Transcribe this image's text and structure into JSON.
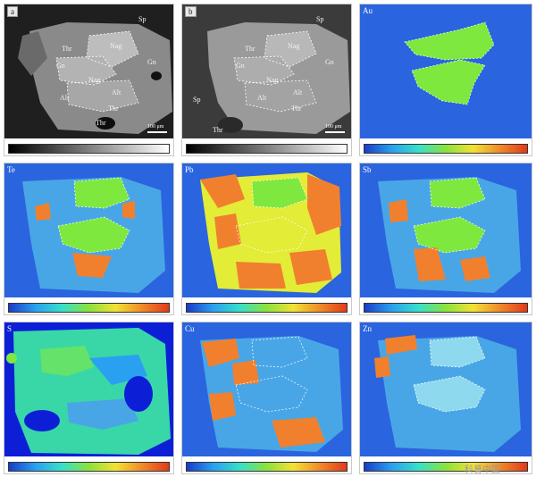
{
  "panels": [
    {
      "id": "a",
      "tag": "a",
      "kind": "gray"
    },
    {
      "id": "b",
      "tag": "b",
      "kind": "gray"
    },
    {
      "id": "au",
      "tag": "Au",
      "kind": "color"
    },
    {
      "id": "te",
      "tag": "Te",
      "kind": "color"
    },
    {
      "id": "pb",
      "tag": "Pb",
      "kind": "color"
    },
    {
      "id": "sb",
      "tag": "Sb",
      "kind": "color"
    },
    {
      "id": "s",
      "tag": "S",
      "kind": "color"
    },
    {
      "id": "cu",
      "tag": "Cu",
      "kind": "color"
    },
    {
      "id": "zn",
      "tag": "Zn",
      "kind": "color"
    }
  ],
  "mineral_labels": {
    "sp": "Sp",
    "thr": "Thr",
    "nag": "Nag",
    "gn": "Gn",
    "alt": "Alt"
  },
  "scale_text": "100 μm",
  "watermark": "科普中国",
  "colors": {
    "matrix_blue": "#2a64df",
    "grain_light_blue": "#49a6e6",
    "gold_green": "#7fe83f",
    "hot_orange": "#f0802e",
    "yellow": "#e3ec36",
    "gray_bg": "#2b2b2b",
    "gray_grain": "#8c8c8c"
  }
}
